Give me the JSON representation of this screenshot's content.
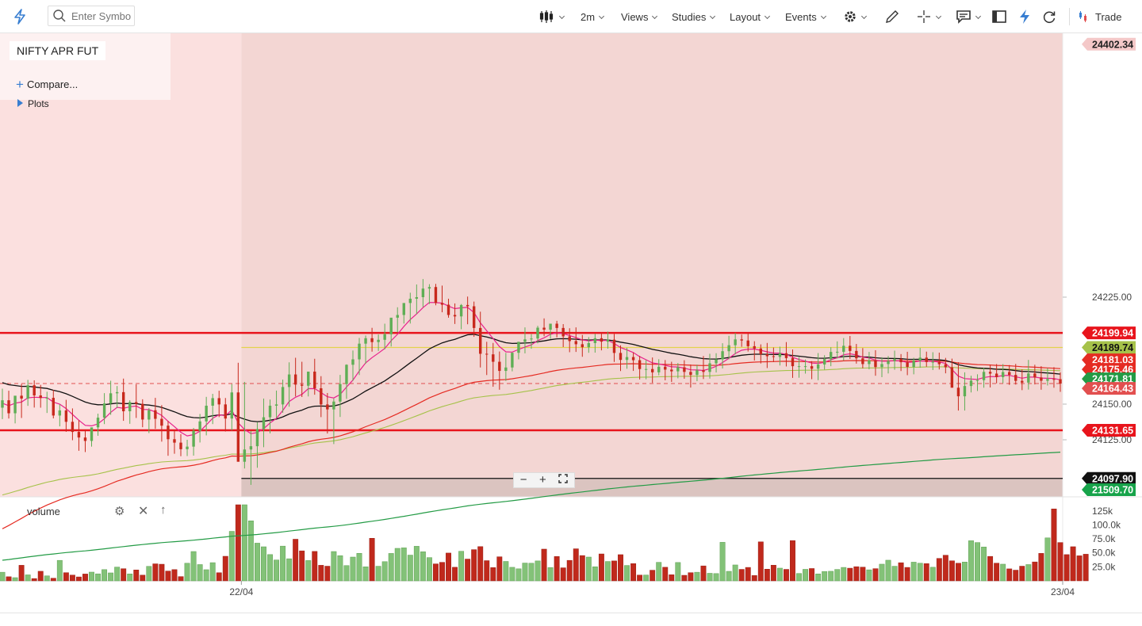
{
  "toolbar": {
    "search_placeholder": "Enter Symbol",
    "interval": "2m",
    "views": "Views",
    "studies": "Studies",
    "layout": "Layout",
    "events": "Events",
    "trade": "Trade"
  },
  "legend": {
    "symbol": "NIFTY APR FUT",
    "compare": "Compare...",
    "plots": "Plots"
  },
  "volume_panel": {
    "label": "volume"
  },
  "colors": {
    "up": "#5fae55",
    "down": "#c8281c",
    "hline": "#e8141c",
    "ema_fast": "#e8208c",
    "ema_mid": "#111111",
    "ema_slow": "#e52b22",
    "ema_long": "#239b45",
    "ema_light": "#a6c24a",
    "yellow": "#e4d24c"
  },
  "chart_data": {
    "type": "candlestick",
    "symbol": "NIFTY APR FUT",
    "interval": "2m",
    "ylim": [
      24085,
      24410
    ],
    "y_ticks": [
      "24225.00",
      "24150.00",
      "24125.00"
    ],
    "x_ticks": [
      "22/04",
      "23/04"
    ],
    "candle_count": 167,
    "ohlc_open": [
      24147.5,
      24152.7,
      24143.6,
      24155.9,
      24153.9,
      24163.2,
      24156.1,
      24154.3,
      24154.4,
      24142.0,
      24145.6,
      24137.6,
      24130.5,
      24126.6,
      24124.2,
      24133.7,
      24140.5,
      24150.5,
      24157.6,
      24158.4,
      24145.0,
      24151.4,
      24150.2,
      24139.2,
      24145.7,
      24139.7,
      24134.9,
      24125.4,
      24123.0,
      24118.4,
      24120.2,
      24131.3,
      24137.9,
      24148.9,
      24154.2,
      24149.8,
      24139.9,
      24158.2,
      24109.6,
      24118.2,
      24120.5,
      24132.5,
      24140.8,
      24148.9,
      24149.8,
      24162.0,
      24170.8,
      24163.7,
      24162.9,
      24172.8,
      24161.1,
      24149.8,
      24146.3,
      24151.8,
      24164.1,
      24177.6,
      24181.4,
      24192.4,
      24196.2,
      24193.5,
      24195.1,
      24199.0,
      24210.6,
      24212.5,
      24220.9,
      24223.9,
      24225.0,
      24231.0,
      24232.1,
      24220.9,
      24219.7,
      24212.5,
      24211.5,
      24219.5,
      24218.6,
      24203.4,
      24185.3,
      24184.9,
      24179.7,
      24173.3,
      24175.7,
      24186.0,
      24193.7,
      24195.4,
      24196.0,
      24203.6,
      24202.2,
      24206.4,
      24203.4,
      24197.5,
      24194.2,
      24192.0,
      24189.9,
      24192.8,
      24196.2,
      24193.8,
      24195.2,
      24185.9,
      24181.0,
      24183.0,
      24180.8,
      24174.6,
      24174.6,
      24172.3,
      24176.2,
      24174.2,
      24173.0,
      24175.8,
      24172.6,
      24170.5,
      24173.7,
      24172.6,
      24178.6,
      24181.4,
      24187.1,
      24191.3,
      24195.4,
      24194.6,
      24190.6,
      24189.0,
      24185.0,
      24183.6,
      24183.1,
      24185.7,
      24182.3,
      24176.6,
      24176.6,
      24176.6,
      24174.8,
      24177.8,
      24181.6,
      24186.6,
      24186.7,
      24190.9,
      24187.3,
      24182.1,
      24178.1,
      24180.7,
      24176.0,
      24178.1,
      24180.2,
      24181.7,
      24179.4,
      24176.1,
      24180.5,
      24182.6,
      24179.5,
      24179.7,
      24178.0,
      24175.8,
      24161.5,
      24155.5,
      24162.7,
      24166.5,
      24166.8,
      24172.6,
      24171.4,
      24168.9,
      24172.5,
      24170.5,
      24166.3,
      24165.1,
      24171.5,
      24168.7,
      24166.4,
      24167.6,
      24167.5
    ],
    "ohlc_high": [
      24160.8,
      24159.4,
      24154.4,
      24164.1,
      24167.0,
      24166.7,
      24163.5,
      24158.7,
      24160.0,
      24149.7,
      24153.0,
      24147.0,
      24138.7,
      24132.0,
      24131.2,
      24143.3,
      24157.7,
      24166.4,
      24162.7,
      24167.9,
      24152.7,
      24163.9,
      24153.4,
      24147.2,
      24154.4,
      24149.3,
      24138.2,
      24131.9,
      24129.0,
      24125.0,
      24133.3,
      24143.1,
      24155.1,
      24157.2,
      24159.4,
      24154.3,
      24164.1,
      24179.0,
      24165.6,
      24131.2,
      24137.2,
      24153.9,
      24153.2,
      24159.5,
      24167.2,
      24179.3,
      24182.5,
      24179.7,
      24172.1,
      24181.8,
      24169.6,
      24157.8,
      24153.9,
      24170.5,
      24177.9,
      24187.6,
      24196.4,
      24198.1,
      24203.5,
      24198.8,
      24206.4,
      24206.7,
      24217.9,
      24218.2,
      24228.1,
      24233.9,
      24237.7,
      24234.1,
      24234.3,
      24233.1,
      24223.9,
      24220.6,
      24220.2,
      24225.4,
      24221.9,
      24214.8,
      24193.7,
      24192.9,
      24186.9,
      24185.9,
      24186.3,
      24193.4,
      24203.8,
      24199.1,
      24204.9,
      24210.1,
      24206.4,
      24208.4,
      24206.1,
      24203.2,
      24203.8,
      24198.5,
      24197.0,
      24199.3,
      24200.0,
      24200.9,
      24199.2,
      24191.2,
      24189.5,
      24186.2,
      24183.8,
      24180.8,
      24182.7,
      24181.5,
      24180.9,
      24179.7,
      24178.8,
      24180.8,
      24177.8,
      24177.7,
      24183.7,
      24185.3,
      24185.7,
      24192.7,
      24197.9,
      24199.9,
      24198.8,
      24199.7,
      24194.1,
      24191.9,
      24192.9,
      24189.7,
      24190.3,
      24193.5,
      24188.3,
      24182.9,
      24181.3,
      24180.1,
      24185.8,
      24184.3,
      24189.9,
      24194.0,
      24196.3,
      24197.8,
      24192.2,
      24189.3,
      24186.6,
      24187.8,
      24182.9,
      24183.7,
      24187.5,
      24185.1,
      24186.7,
      24182.5,
      24189.4,
      24186.8,
      24186.4,
      24186.1,
      24182.4,
      24181.9,
      24179.4,
      24172.3,
      24169.9,
      24170.9,
      24175.6,
      24177.8,
      24178.1,
      24178.1,
      24177.4,
      24178.2,
      24174.3,
      24181.0,
      24177.6,
      24176.6,
      24175.2,
      24175.9,
      24172.3
    ],
    "ohlc_low": [
      24139.5,
      24139.9,
      24136.5,
      24140.3,
      24148.8,
      24147.6,
      24147.5,
      24143.8,
      24140.0,
      24134.4,
      24130.6,
      24124.7,
      24117.3,
      24116.4,
      24120.2,
      24127.8,
      24136.0,
      24142.5,
      24147.3,
      24138.3,
      24136.2,
      24140.3,
      24133.8,
      24129.7,
      24132.7,
      24123.7,
      24113.8,
      24115.2,
      24113.5,
      24113.6,
      24113.9,
      24123.1,
      24128.1,
      24136.0,
      24140.9,
      24130.8,
      24131.5,
      24130.6,
      24104.9,
      24093.4,
      24105.4,
      24119.8,
      24129.5,
      24140.3,
      24143.9,
      24148.2,
      24155.4,
      24155.0,
      24155.4,
      24156.6,
      24140.9,
      24129.4,
      24122.0,
      24141.0,
      24153.7,
      24166.3,
      24170.4,
      24178.3,
      24186.8,
      24187.3,
      24188.4,
      24190.4,
      24200.4,
      24206.5,
      24206.5,
      24213.2,
      24218.0,
      24220.2,
      24219.3,
      24214.4,
      24210.6,
      24206.2,
      24202.5,
      24206.0,
      24197.2,
      24175.7,
      24170.4,
      24162.2,
      24160.1,
      24166.3,
      24173.0,
      24181.4,
      24185.6,
      24188.8,
      24192.6,
      24197.6,
      24195.8,
      24196.8,
      24190.0,
      24186.4,
      24186.6,
      24183.2,
      24186.0,
      24186.1,
      24187.7,
      24188.9,
      24179.6,
      24173.2,
      24174.8,
      24173.3,
      24167.3,
      24167.4,
      24164.9,
      24170.2,
      24166.7,
      24165.6,
      24168.1,
      24167.8,
      24161.6,
      24166.1,
      24167.6,
      24167.9,
      24172.2,
      24175.0,
      24181.4,
      24184.9,
      24190.2,
      24186.9,
      24180.6,
      24178.5,
      24175.3,
      24179.5,
      24177.1,
      24176.4,
      24168.4,
      24168.5,
      24171.4,
      24167.5,
      24166.8,
      24174.2,
      24176.6,
      24182.0,
      24180.6,
      24181.7,
      24178.4,
      24175.1,
      24174.4,
      24169.9,
      24168.9,
      24171.5,
      24174.1,
      24173.2,
      24170.3,
      24170.9,
      24175.5,
      24176.2,
      24173.9,
      24174.3,
      24171.6,
      24166.6,
      24145.5,
      24145.5,
      24158.2,
      24159.2,
      24161.5,
      24161.7,
      24164.6,
      24164.7,
      24163.5,
      24163.7,
      24159.8,
      24160.2,
      24163.8,
      24160.1,
      24163.1,
      24161.5,
      24158.6
    ],
    "ohlc_close": [
      24152.7,
      24143.6,
      24155.9,
      24153.9,
      24163.2,
      24156.1,
      24154.3,
      24154.4,
      24142.0,
      24145.6,
      24137.6,
      24130.5,
      24126.6,
      24124.2,
      24133.7,
      24140.5,
      24150.5,
      24157.6,
      24158.4,
      24145.0,
      24151.4,
      24150.2,
      24139.2,
      24145.7,
      24139.7,
      24134.9,
      24125.4,
      24123.0,
      24118.4,
      24120.2,
      24131.3,
      24137.9,
      24148.9,
      24154.2,
      24149.8,
      24139.9,
      24158.2,
      24109.6,
      24118.2,
      24120.5,
      24132.5,
      24140.8,
      24148.9,
      24149.8,
      24162.0,
      24170.8,
      24163.7,
      24162.9,
      24172.8,
      24161.1,
      24149.8,
      24146.3,
      24151.8,
      24164.1,
      24177.6,
      24181.4,
      24192.4,
      24196.2,
      24193.5,
      24195.1,
      24199.0,
      24210.6,
      24212.5,
      24220.9,
      24223.9,
      24225.0,
      24231.0,
      24232.1,
      24220.9,
      24219.7,
      24212.5,
      24211.5,
      24219.5,
      24218.6,
      24203.4,
      24185.3,
      24184.9,
      24179.7,
      24173.3,
      24175.7,
      24186.0,
      24193.7,
      24195.4,
      24196.0,
      24203.6,
      24202.2,
      24206.4,
      24203.4,
      24197.5,
      24194.2,
      24192.0,
      24189.9,
      24192.8,
      24196.2,
      24193.8,
      24195.2,
      24185.9,
      24181.0,
      24183.0,
      24180.8,
      24174.6,
      24174.6,
      24172.3,
      24176.2,
      24174.2,
      24173.0,
      24175.8,
      24172.6,
      24170.5,
      24173.7,
      24172.6,
      24178.6,
      24181.4,
      24187.1,
      24191.3,
      24195.4,
      24194.6,
      24190.6,
      24189.0,
      24185.0,
      24183.6,
      24183.1,
      24185.7,
      24182.3,
      24176.6,
      24176.6,
      24176.6,
      24174.8,
      24177.8,
      24181.6,
      24186.6,
      24186.7,
      24190.9,
      24187.3,
      24182.1,
      24178.1,
      24180.7,
      24176.0,
      24178.1,
      24180.2,
      24181.7,
      24179.4,
      24176.1,
      24180.5,
      24182.6,
      24179.5,
      24179.7,
      24178.0,
      24175.8,
      24161.5,
      24155.5,
      24162.7,
      24166.5,
      24166.8,
      24172.6,
      24171.4,
      24168.9,
      24172.5,
      24170.5,
      24166.3,
      24165.1,
      24171.5,
      24168.7,
      24166.4,
      24167.6,
      24167.5,
      24164.4
    ],
    "volume": [
      15.4,
      7.3,
      5.7,
      27.8,
      10.7,
      4.1,
      17.1,
      8.9,
      4.7,
      36.6,
      14.6,
      10.3,
      7.0,
      12.2,
      15.6,
      12.5,
      20.1,
      14.2,
      24.6,
      21.7,
      12.4,
      19.5,
      10.2,
      25.9,
      30.4,
      29.7,
      17.5,
      20.1,
      7.6,
      31.5,
      52.4,
      29.1,
      19.9,
      32.5,
      14.5,
      43.9,
      88.5,
      136.0,
      136.0,
      107.3,
      67.4,
      60.9,
      47.0,
      37.3,
      62.1,
      39.5,
      74.4,
      53.6,
      36.3,
      52.6,
      27.8,
      26.2,
      52.4,
      45.0,
      27.3,
      42.5,
      49.2,
      25.1,
      76.1,
      26.1,
      34.3,
      49.0,
      58.1,
      59.0,
      46.0,
      61.8,
      52.0,
      41.6,
      30.3,
      33.1,
      49.7,
      24.3,
      52.9,
      38.9,
      55.8,
      61.2,
      36.1,
      23.7,
      43.0,
      34.7,
      24.2,
      21.5,
      31.8,
      31.5,
      35.6,
      56.7,
      23.8,
      43.5,
      23.3,
      36.6,
      57.3,
      45.2,
      42.5,
      25.2,
      48.1,
      34.6,
      35.6,
      46.8,
      27.5,
      30.8,
      10.3,
      10.4,
      19.0,
      33.1,
      24.3,
      10.9,
      32.8,
      9.9,
      14.6,
      15.4,
      26.7,
      13.5,
      13.0,
      68.9,
      17.0,
      28.4,
      20.5,
      24.0,
      9.5,
      69.7,
      20.9,
      28.0,
      22.7,
      20.5,
      72.0,
      13.2,
      20.6,
      22.0,
      12.4,
      16.7,
      17.1,
      20.4,
      24.0,
      22.6,
      25.3,
      24.5,
      19.7,
      21.8,
      29.8,
      36.9,
      26.1,
      32.4,
      24.0,
      33.4,
      31.5,
      30.8,
      24.3,
      40.1,
      45.8,
      35.8,
      31.5,
      33.6,
      71.7,
      68.5,
      60.5,
      43.7,
      31.6,
      29.8,
      21.4,
      19.1,
      26.2,
      29.1,
      33.8,
      49.1,
      76.8,
      128.6,
      68.5,
      46.9,
      61.0,
      44.8,
      47.6
    ],
    "volume_axis": [
      "125k",
      "100.0k",
      "75.0k",
      "50.0k",
      "25.0k"
    ],
    "horizontal_lines": [
      {
        "label": "24199.94",
        "value": 24199.94,
        "color": "#e8141c"
      },
      {
        "label": "24131.65",
        "value": 24131.65,
        "color": "#e8141c"
      },
      {
        "label": "24097.90",
        "value": 24097.9,
        "color": "#111111"
      }
    ],
    "price_tags": [
      {
        "label": "24402.34",
        "value": 24402.34,
        "bg": "#f4c8c8",
        "fg": "#222222"
      },
      {
        "label": "24199.94",
        "value": 24199.94,
        "bg": "#e8141c",
        "fg": "#ffffff"
      },
      {
        "label": "24189.74",
        "value": 24189.74,
        "bg": "#a6c24a",
        "fg": "#111111"
      },
      {
        "label": "24181.03",
        "value": 24181.03,
        "bg": "#e52b22",
        "fg": "#ffffff"
      },
      {
        "label": "24175.46",
        "value": 24175.46,
        "bg": "#e52b22",
        "fg": "#ffffff"
      },
      {
        "label": "24171.81",
        "value": 24171.81,
        "bg": "#239b45",
        "fg": "#ffffff"
      },
      {
        "label": "24164.43",
        "value": 24164.43,
        "bg": "#e24f4f",
        "fg": "#ffffff"
      },
      {
        "label": "24131.65",
        "value": 24131.65,
        "bg": "#e8141c",
        "fg": "#ffffff"
      },
      {
        "label": "24097.90",
        "value": 24097.9,
        "bg": "#111111",
        "fg": "#ffffff"
      },
      {
        "label": "21509.70",
        "value": 21509.7,
        "bg": "#17a34a",
        "fg": "#ffffff"
      }
    ],
    "grid": false
  }
}
